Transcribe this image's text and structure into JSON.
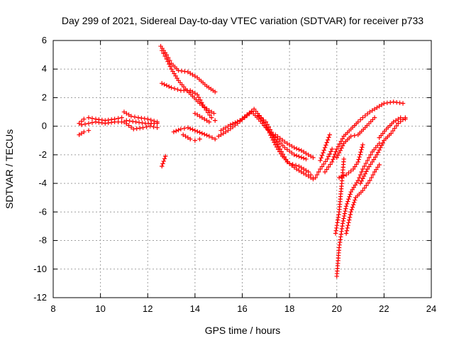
{
  "chart_data": {
    "type": "scatter",
    "title": "Day 299 of 2021, Sidereal Day-to-day VTEC variation (SDTVAR) for receiver p733",
    "xlabel": "GPS time / hours",
    "ylabel": "SDTVAR / TECUs",
    "xlim": [
      8,
      24
    ],
    "ylim": [
      -12,
      6
    ],
    "x_ticks": [
      "8",
      "10",
      "12",
      "14",
      "16",
      "18",
      "20",
      "22",
      "24"
    ],
    "y_ticks": [
      "6",
      "4",
      "2",
      "0",
      "-2",
      "-4",
      "-6",
      "-8",
      "-10",
      "-12"
    ],
    "grid": true,
    "marker": "+",
    "series_color": "#ff0000",
    "series": [
      {
        "x": [
          9.1,
          9.3,
          9.5,
          9.8,
          10.2,
          10.6,
          10.9
        ],
        "y": [
          0.2,
          0.5,
          0.6,
          0.5,
          0.4,
          0.5,
          0.6
        ]
      },
      {
        "x": [
          9.1,
          9.3,
          9.5
        ],
        "y": [
          -0.6,
          -0.4,
          -0.3
        ]
      },
      {
        "x": [
          9.2,
          9.5,
          9.8,
          10.2,
          10.6,
          10.9
        ],
        "y": [
          0.1,
          0.2,
          0.3,
          0.2,
          0.3,
          0.3
        ]
      },
      {
        "x": [
          11.0,
          11.3,
          11.6,
          12.0,
          12.4
        ],
        "y": [
          1.0,
          0.7,
          0.6,
          0.5,
          0.3
        ]
      },
      {
        "x": [
          11.0,
          11.4,
          11.8,
          12.1,
          12.4
        ],
        "y": [
          0.3,
          -0.2,
          -0.1,
          0.0,
          -0.1
        ]
      },
      {
        "x": [
          11.1,
          11.5,
          11.9,
          12.4
        ],
        "y": [
          0.4,
          0.3,
          0.2,
          0.2
        ]
      },
      {
        "x": [
          12.6,
          12.75
        ],
        "y": [
          -2.8,
          -2.1
        ]
      },
      {
        "x": [
          12.55,
          12.8,
          13.0,
          13.3,
          13.7,
          14.1,
          14.5,
          14.85
        ],
        "y": [
          5.6,
          5.0,
          4.4,
          3.9,
          3.8,
          3.4,
          2.8,
          2.4
        ]
      },
      {
        "x": [
          12.6,
          12.8,
          13.0,
          13.3,
          13.6,
          13.9,
          14.2,
          14.6,
          14.8
        ],
        "y": [
          5.3,
          4.7,
          4.0,
          3.2,
          2.6,
          2.1,
          1.6,
          1.1,
          0.9
        ]
      },
      {
        "x": [
          12.6,
          13.0,
          13.4,
          13.8,
          14.1,
          14.4,
          14.7,
          14.85
        ],
        "y": [
          3.0,
          2.7,
          2.5,
          2.5,
          2.2,
          1.3,
          0.6,
          0.4
        ]
      },
      {
        "x": [
          13.1,
          13.4,
          13.7,
          14.0,
          14.3,
          14.6,
          14.85
        ],
        "y": [
          -0.4,
          -0.2,
          -0.1,
          -0.3,
          -0.5,
          -0.7,
          -0.9
        ]
      },
      {
        "x": [
          13.5,
          13.8,
          14.0,
          14.2
        ],
        "y": [
          -0.6,
          -0.9,
          -1.0,
          -0.9
        ]
      },
      {
        "x": [
          14.0,
          14.3,
          14.6
        ],
        "y": [
          0.9,
          0.6,
          0.3
        ]
      },
      {
        "x": [
          15.0,
          15.4,
          15.8,
          16.1,
          16.4,
          16.7,
          17.0,
          17.4,
          17.8,
          18.2,
          18.7
        ],
        "y": [
          -0.7,
          -0.3,
          0.2,
          0.6,
          1.0,
          0.5,
          -0.1,
          -0.8,
          -1.5,
          -2.0,
          -2.3
        ]
      },
      {
        "x": [
          15.1,
          15.5,
          15.9,
          16.2,
          16.5,
          16.8,
          17.1,
          17.4,
          17.7,
          18.0,
          18.4,
          18.8,
          19.0
        ],
        "y": [
          -0.3,
          0.1,
          0.4,
          0.8,
          1.2,
          0.6,
          -0.3,
          -1.3,
          -2.1,
          -2.6,
          -2.8,
          -3.2,
          -3.6
        ]
      },
      {
        "x": [
          16.7,
          17.0,
          17.3,
          17.6,
          17.9,
          18.3,
          18.7,
          19.0
        ],
        "y": [
          0.7,
          0.3,
          -0.6,
          -1.6,
          -2.5,
          -3.0,
          -3.4,
          -3.7
        ]
      },
      {
        "x": [
          17.4,
          17.8,
          18.2,
          18.5,
          18.8,
          19.0
        ],
        "y": [
          -0.6,
          -1.1,
          -1.5,
          -1.7,
          -2.0,
          -2.2
        ]
      },
      {
        "x": [
          19.1,
          19.3,
          19.6,
          19.8
        ],
        "y": [
          -3.6,
          -3.0,
          -2.3,
          -1.6
        ]
      },
      {
        "x": [
          19.3,
          19.5,
          19.7
        ],
        "y": [
          -2.4,
          -1.5,
          -0.6
        ]
      },
      {
        "x": [
          19.5,
          19.8,
          20.0,
          20.3,
          20.6,
          20.9,
          21.1,
          21.4,
          21.7,
          22.0,
          22.4,
          22.8
        ],
        "y": [
          -3.2,
          -2.5,
          -1.6,
          -0.7,
          -0.2,
          0.3,
          0.6,
          1.0,
          1.3,
          1.6,
          1.7,
          1.6
        ]
      },
      {
        "x": [
          20.0,
          20.3,
          20.6,
          20.9,
          21.2,
          21.6
        ],
        "y": [
          -2.2,
          -1.2,
          -0.7,
          -0.6,
          -0.1,
          0.6
        ]
      },
      {
        "x": [
          19.95,
          20.1,
          20.2,
          20.3
        ],
        "y": [
          -7.5,
          -6.0,
          -4.2,
          -2.3
        ]
      },
      {
        "x": [
          20.0,
          20.1,
          20.25,
          20.4,
          20.6,
          20.9,
          21.1,
          21.3,
          21.5,
          21.8
        ],
        "y": [
          -10.5,
          -8.5,
          -6.8,
          -5.6,
          -4.6,
          -3.8,
          -3.0,
          -2.4,
          -1.8,
          -1.2
        ]
      },
      {
        "x": [
          20.4,
          20.6,
          20.8,
          21.1,
          21.4,
          21.6,
          21.8
        ],
        "y": [
          -7.5,
          -6.0,
          -5.0,
          -4.5,
          -3.8,
          -3.2,
          -2.7
        ]
      },
      {
        "x": [
          20.1,
          20.4,
          20.7,
          20.9,
          21.1
        ],
        "y": [
          -3.6,
          -3.4,
          -3.0,
          -2.5,
          -1.3
        ]
      },
      {
        "x": [
          21.0,
          21.3,
          21.7,
          22.0,
          22.3,
          22.6,
          22.9
        ],
        "y": [
          -4.0,
          -3.0,
          -2.0,
          -1.0,
          -0.5,
          0.2,
          0.6
        ]
      },
      {
        "x": [
          21.8,
          22.1,
          22.4,
          22.7,
          22.9
        ],
        "y": [
          -0.8,
          -0.2,
          0.3,
          0.6,
          0.5
        ]
      }
    ]
  }
}
